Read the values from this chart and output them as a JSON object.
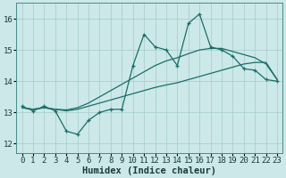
{
  "xlabel": "Humidex (Indice chaleur)",
  "xlim": [
    -0.5,
    23.5
  ],
  "ylim": [
    11.7,
    16.5
  ],
  "yticks": [
    12,
    13,
    14,
    15,
    16
  ],
  "xticks": [
    0,
    1,
    2,
    3,
    4,
    5,
    6,
    7,
    8,
    9,
    10,
    11,
    12,
    13,
    14,
    15,
    16,
    17,
    18,
    19,
    20,
    21,
    22,
    23
  ],
  "bg_color": "#cce8e8",
  "grid_color": "#aacfcf",
  "line_color": "#1a6e6a",
  "line1_y": [
    13.2,
    13.05,
    13.2,
    13.05,
    12.4,
    12.3,
    12.75,
    13.0,
    13.1,
    13.1,
    14.5,
    15.5,
    15.1,
    15.0,
    14.5,
    15.85,
    16.15,
    15.1,
    15.0,
    14.8,
    14.4,
    14.35,
    14.05,
    14.0
  ],
  "trend_upper_y": [
    13.15,
    13.1,
    13.15,
    13.1,
    13.08,
    13.15,
    13.3,
    13.5,
    13.7,
    13.9,
    14.1,
    14.3,
    14.5,
    14.65,
    14.75,
    14.88,
    15.0,
    15.05,
    15.05,
    14.95,
    14.85,
    14.75,
    14.55,
    14.05
  ],
  "trend_lower_y": [
    13.15,
    13.1,
    13.15,
    13.1,
    13.05,
    13.1,
    13.2,
    13.3,
    13.4,
    13.5,
    13.6,
    13.7,
    13.8,
    13.88,
    13.95,
    14.05,
    14.15,
    14.25,
    14.35,
    14.45,
    14.55,
    14.6,
    14.6,
    14.05
  ],
  "font_family": "monospace",
  "tick_fontsize": 6.5,
  "label_fontsize": 7.5
}
